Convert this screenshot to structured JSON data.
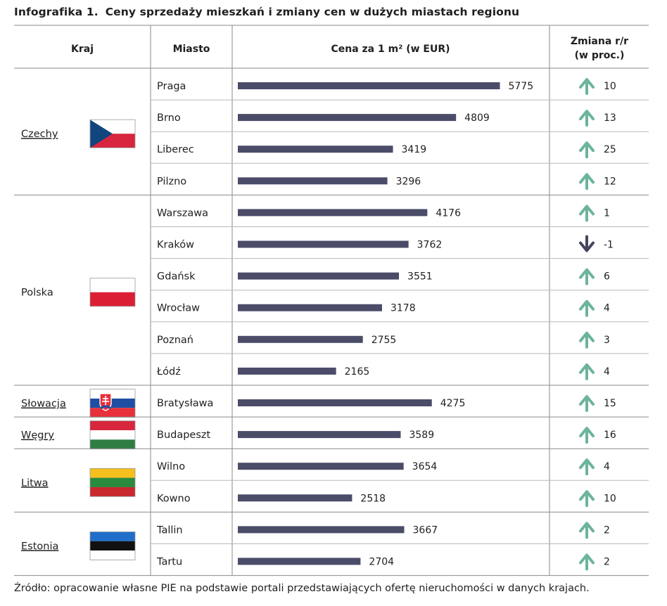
{
  "title": {
    "label": "Infografika 1.",
    "text": "Ceny sprzedaży mieszkań i zmiany cen w dużych miastach regionu"
  },
  "columns": {
    "country": "Kraj",
    "city": "Miasto",
    "price": "Cena za 1 m² (w EUR)",
    "change_line1": "Zmiana r/r",
    "change_line2": "(w proc.)"
  },
  "colors": {
    "bar": "#4a4c68",
    "arrow_up": "#6cb49a",
    "arrow_down": "#44465e",
    "rule": "#8a8a8a"
  },
  "chart_data": {
    "type": "bar",
    "orientation": "horizontal",
    "unit": "EUR/m²",
    "countries": [
      {
        "name": "Czechy",
        "flag": "czech-flag",
        "cities": [
          {
            "city": "Praga",
            "price": 5775,
            "change": 10
          },
          {
            "city": "Brno",
            "price": 4809,
            "change": 13
          },
          {
            "city": "Liberec",
            "price": 3419,
            "change": 25
          },
          {
            "city": "Pilzno",
            "price": 3296,
            "change": 12
          }
        ]
      },
      {
        "name": "Polska",
        "flag": "poland-flag",
        "cities": [
          {
            "city": "Warszawa",
            "price": 4176,
            "change": 1
          },
          {
            "city": "Kraków",
            "price": 3762,
            "change": -1
          },
          {
            "city": "Gdańsk",
            "price": 3551,
            "change": 6
          },
          {
            "city": "Wrocław",
            "price": 3178,
            "change": 4
          },
          {
            "city": "Poznań",
            "price": 2755,
            "change": 3
          },
          {
            "city": "Łódź",
            "price": 2165,
            "change": 4
          }
        ]
      },
      {
        "name": "Słowacja",
        "flag": "slovakia-flag",
        "cities": [
          {
            "city": "Bratysława",
            "price": 4275,
            "change": 15
          }
        ]
      },
      {
        "name": "Węgry",
        "flag": "hungary-flag",
        "cities": [
          {
            "city": "Budapeszt",
            "price": 3589,
            "change": 16
          }
        ]
      },
      {
        "name": "Litwa",
        "flag": "lithuania-flag",
        "cities": [
          {
            "city": "Wilno",
            "price": 3654,
            "change": 4
          },
          {
            "city": "Kowno",
            "price": 2518,
            "change": 10
          }
        ]
      },
      {
        "name": "Estonia",
        "flag": "estonia-flag",
        "cities": [
          {
            "city": "Tallin",
            "price": 3667,
            "change": 2
          },
          {
            "city": "Tartu",
            "price": 2704,
            "change": 2
          }
        ]
      }
    ]
  },
  "source": "Źródło: opracowanie własne PIE na podstawie portali przedstawiających ofertę nieruchomości w danych krajach."
}
